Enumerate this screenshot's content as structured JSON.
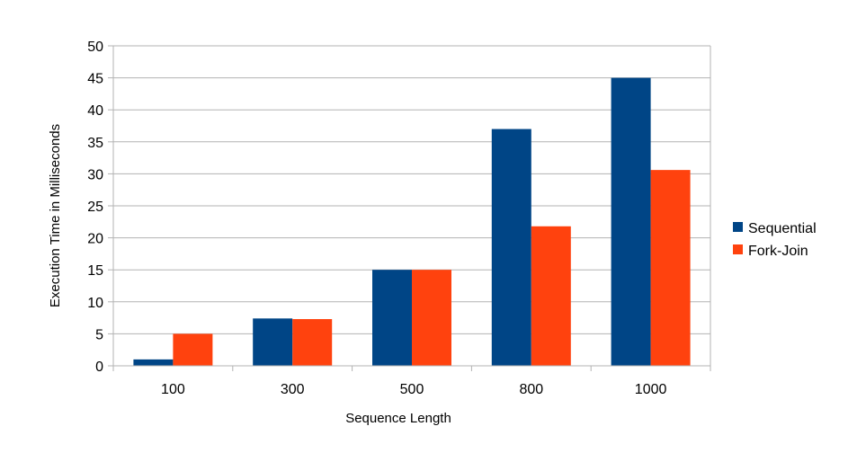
{
  "chart_data": {
    "type": "bar",
    "title": "",
    "xlabel": "Sequence Length",
    "ylabel": "Execution Time in Milliseconds",
    "categories": [
      "100",
      "300",
      "500",
      "800",
      "1000"
    ],
    "series": [
      {
        "name": "Sequential",
        "color": "#004586",
        "values": [
          1,
          7.4,
          15,
          37,
          45
        ]
      },
      {
        "name": "Fork-Join",
        "color": "#ff420e",
        "values": [
          5,
          7.3,
          15,
          21.8,
          30.6
        ]
      }
    ],
    "ylim": [
      0,
      50
    ],
    "yticks": [
      0,
      5,
      10,
      15,
      20,
      25,
      30,
      35,
      40,
      45,
      50
    ],
    "grid": true,
    "legend_position": "right"
  }
}
